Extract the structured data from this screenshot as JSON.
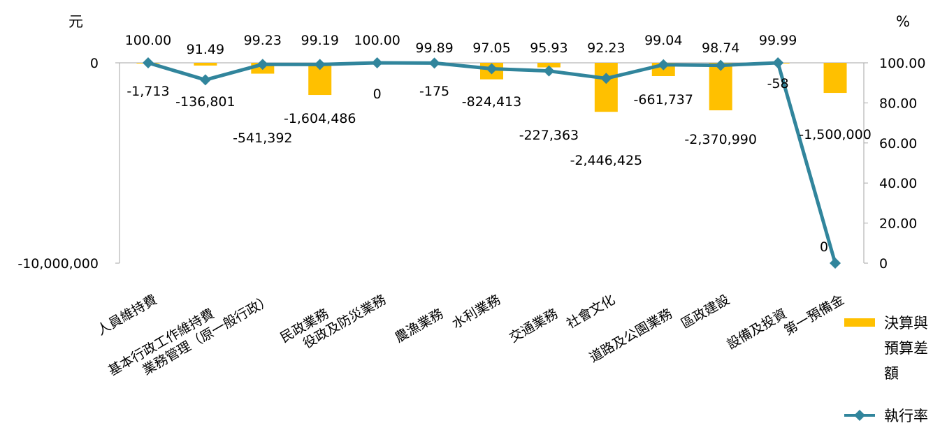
{
  "chart_data": {
    "type": "bar",
    "categories": [
      "人員維持費",
      "基本行政工作維持費",
      "業務管理（原一般行政）",
      "民政業務",
      "役政及防災業務",
      "農漁業務",
      "水利業務",
      "交通業務",
      "社會文化",
      "道路及公園業務",
      "區政建設",
      "設備及投資",
      "第一預備金"
    ],
    "series": [
      {
        "name": "決算與預算差額",
        "type": "bar",
        "axis": "left",
        "color": "#FFC000",
        "values": [
          -1713,
          -136801,
          -541392,
          -1604486,
          0,
          -175,
          -824413,
          -227363,
          -2446425,
          -661737,
          -2370990,
          -58,
          -1500000
        ],
        "labels": [
          "-1,713",
          "-136,801",
          "-541,392",
          "-1,604,486",
          "0",
          "-175",
          "-824,413",
          "-227,363",
          "-2,446,425",
          "-661,737",
          "-2,370,990",
          "-58",
          "-1,500,000"
        ]
      },
      {
        "name": "執行率",
        "type": "line",
        "axis": "right",
        "color": "#31859C",
        "marker": "diamond",
        "values": [
          100.0,
          91.49,
          99.23,
          99.19,
          100.0,
          99.89,
          97.05,
          95.93,
          92.23,
          99.04,
          98.74,
          99.99,
          0
        ],
        "labels": [
          "100.00",
          "91.49",
          "99.23",
          "99.19",
          "100.00",
          "99.89",
          "97.05",
          "95.93",
          "92.23",
          "99.04",
          "98.74",
          "99.99",
          "0"
        ]
      }
    ],
    "left_axis": {
      "unit": "元",
      "ylim": [
        -10000000,
        0
      ],
      "ticks": [
        0,
        -10000000
      ],
      "tick_labels": [
        "0",
        "-10,000,000"
      ]
    },
    "right_axis": {
      "unit": "%",
      "ylim": [
        0,
        100
      ],
      "ticks": [
        0,
        20,
        40,
        60,
        80,
        100
      ],
      "tick_labels": [
        "0",
        "20.00",
        "40.00",
        "60.00",
        "80.00",
        "100.00"
      ]
    },
    "grid": false,
    "legend_position": "right"
  }
}
